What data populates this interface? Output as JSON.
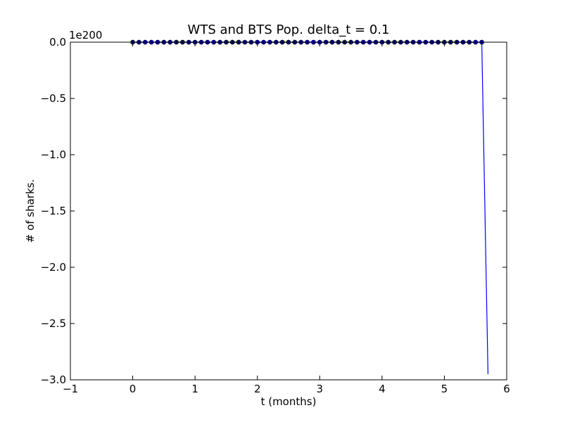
{
  "chart_data": {
    "type": "line",
    "title": "WTS and BTS Pop. delta_t = 0.1",
    "xlabel": "t (months)",
    "ylabel": "# of sharks.",
    "offset_label": "1e200",
    "xlim": [
      -1,
      6
    ],
    "ylim": [
      -3.0,
      0.0
    ],
    "y_scale_exponent": 200,
    "xticks": [
      -1,
      0,
      1,
      2,
      3,
      4,
      5,
      6
    ],
    "xtick_labels": [
      "−1",
      "0",
      "1",
      "2",
      "3",
      "4",
      "5",
      "6"
    ],
    "yticks": [
      0.0,
      -0.5,
      -1.0,
      -1.5,
      -2.0,
      -2.5,
      -3.0
    ],
    "ytick_labels": [
      "0.0",
      "−0.5",
      "−1.0",
      "−1.5",
      "−2.0",
      "−2.5",
      "−3.0"
    ],
    "grid": false,
    "series": [
      {
        "color": "#0000ff",
        "marker": "circle",
        "x": [
          0.0,
          0.1,
          0.2,
          0.3,
          0.4,
          0.5,
          0.6,
          0.7,
          0.8,
          0.9,
          1.0,
          1.1,
          1.2,
          1.3,
          1.4,
          1.5,
          1.6,
          1.7,
          1.8,
          1.9,
          2.0,
          2.1,
          2.2,
          2.3,
          2.4,
          2.5,
          2.6,
          2.7,
          2.8,
          2.9,
          3.0,
          3.1,
          3.2,
          3.3,
          3.4,
          3.5,
          3.6,
          3.7,
          3.8,
          3.9,
          4.0,
          4.1,
          4.2,
          4.3,
          4.4,
          4.5,
          4.6,
          4.7,
          4.8,
          4.9,
          5.0,
          5.1,
          5.2,
          5.3,
          5.4,
          5.5,
          5.6,
          5.7
        ],
        "values": [
          0,
          0,
          0,
          0,
          0,
          0,
          0,
          0,
          0,
          0,
          0,
          0,
          0,
          0,
          0,
          0,
          0,
          0,
          0,
          0,
          0,
          0,
          0,
          0,
          0,
          0,
          0,
          0,
          0,
          0,
          0,
          0,
          0,
          0,
          0,
          0,
          0,
          0,
          0,
          0,
          0,
          0,
          0,
          0,
          0,
          0,
          0,
          0,
          0,
          0,
          0,
          0,
          0,
          0,
          0,
          0,
          0,
          -2.95
        ],
        "marked_points": 57
      },
      {
        "color": "#000000",
        "marker": "plus",
        "x": [
          0.0,
          0.1,
          0.2,
          0.3,
          0.4,
          0.5,
          0.6,
          0.7,
          0.8,
          0.9,
          1.0,
          1.1,
          1.2,
          1.3,
          1.4,
          1.5,
          1.6,
          1.7,
          1.8,
          1.9,
          2.0,
          2.1,
          2.2,
          2.3,
          2.4,
          2.5,
          2.6,
          2.7,
          2.8,
          2.9,
          3.0,
          3.1,
          3.2,
          3.3,
          3.4,
          3.5,
          3.6,
          3.7,
          3.8,
          3.9,
          4.0,
          4.1,
          4.2,
          4.3,
          4.4,
          4.5,
          4.6,
          4.7,
          4.8,
          4.9,
          5.0,
          5.1,
          5.2,
          5.3,
          5.4,
          5.5,
          5.6
        ],
        "values": [
          0,
          0,
          0,
          0,
          0,
          0,
          0,
          0,
          0,
          0,
          0,
          0,
          0,
          0,
          0,
          0,
          0,
          0,
          0,
          0,
          0,
          0,
          0,
          0,
          0,
          0,
          0,
          0,
          0,
          0,
          0,
          0,
          0,
          0,
          0,
          0,
          0,
          0,
          0,
          0,
          0,
          0,
          0,
          0,
          0,
          0,
          0,
          0,
          0,
          0,
          0,
          0,
          0,
          0,
          0,
          0,
          0
        ]
      }
    ]
  }
}
